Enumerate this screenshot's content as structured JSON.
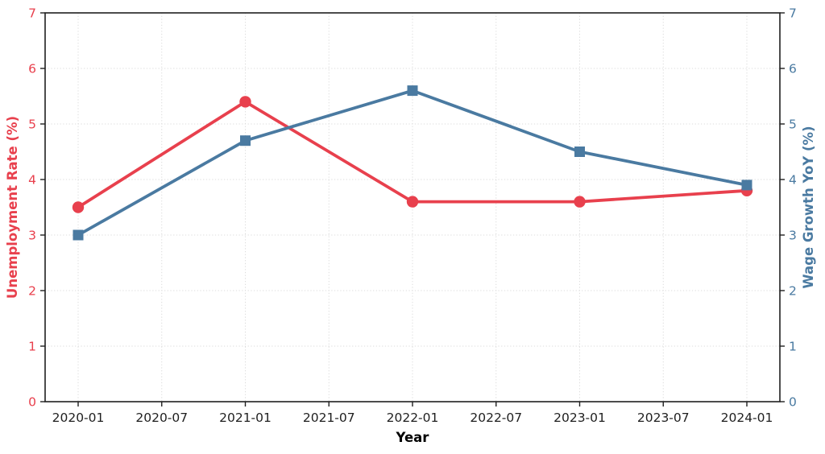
{
  "chart_data": {
    "type": "line",
    "title": "",
    "xlabel": "Year",
    "x_tick_labels": [
      "2020-01",
      "2020-07",
      "2021-01",
      "2021-07",
      "2022-01",
      "2022-07",
      "2023-01",
      "2023-07",
      "2024-01"
    ],
    "y_tick_labels": [
      "0",
      "1",
      "2",
      "3",
      "4",
      "5",
      "6",
      "7"
    ],
    "left_axis": {
      "label": "Unemployment Rate (%)",
      "color": "#e8404d",
      "range": [
        0,
        7
      ]
    },
    "right_axis": {
      "label": "Wage Growth YoY (%)",
      "color": "#4a7aa1",
      "range": [
        0,
        7
      ]
    },
    "grid": true,
    "grid_style": "dotted",
    "grid_color": "#dcdcdc",
    "spine_color": "#1f1f1f",
    "x_tick_label_color": "#1f1f1f",
    "series": [
      {
        "name": "Unemployment Rate (%)",
        "axis": "left",
        "color": "#e8404d",
        "marker": "circle",
        "x_labels": [
          "2020-01",
          "2021-01",
          "2022-01",
          "2023-01",
          "2024-01"
        ],
        "values": [
          3.5,
          5.4,
          3.6,
          3.6,
          3.8
        ]
      },
      {
        "name": "Wage Growth YoY (%)",
        "axis": "right",
        "color": "#4a7aa1",
        "marker": "square",
        "x_labels": [
          "2020-01",
          "2021-01",
          "2022-01",
          "2023-01",
          "2024-01"
        ],
        "values": [
          3.0,
          4.7,
          5.6,
          4.5,
          3.9
        ]
      }
    ]
  }
}
